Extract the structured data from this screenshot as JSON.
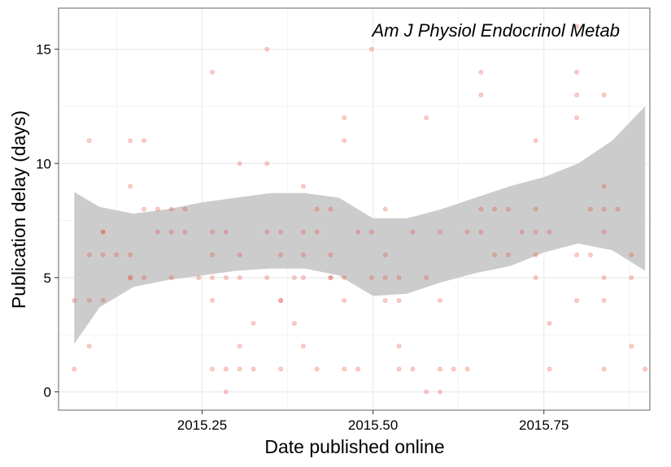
{
  "chart_data": {
    "type": "scatter",
    "title": "Am J Physiol Endocrinol Metab",
    "xlabel": "Date published online",
    "ylabel": "Publication delay (days)",
    "xlim": [
      2015.04,
      2015.905
    ],
    "ylim": [
      -0.8,
      16.8
    ],
    "x_ticks": [
      2015.25,
      2015.5,
      2015.75
    ],
    "x_tick_labels": [
      "2015.25",
      "2015.50",
      "2015.75"
    ],
    "y_ticks": [
      0,
      5,
      10,
      15
    ],
    "y_tick_labels": [
      "0",
      "5",
      "10",
      "15"
    ],
    "x_minor_ticks": [
      2015.125,
      2015.375,
      2015.625,
      2015.875
    ],
    "y_minor_ticks": [
      2.5,
      7.5,
      12.5
    ],
    "grid": true,
    "legend": "none",
    "colors": {
      "points": "#e8473a",
      "ribbon": "#cccccc",
      "grid": "#ebebeb",
      "panel_border": "#7f7f7f"
    },
    "points": [
      {
        "x": 2015.063,
        "y": 4
      },
      {
        "x": 2015.063,
        "y": 1
      },
      {
        "x": 2015.085,
        "y": 11
      },
      {
        "x": 2015.085,
        "y": 6
      },
      {
        "x": 2015.085,
        "y": 4
      },
      {
        "x": 2015.085,
        "y": 2
      },
      {
        "x": 2015.105,
        "y": 7
      },
      {
        "x": 2015.105,
        "y": 7
      },
      {
        "x": 2015.105,
        "y": 6
      },
      {
        "x": 2015.105,
        "y": 4
      },
      {
        "x": 2015.125,
        "y": 6
      },
      {
        "x": 2015.145,
        "y": 11
      },
      {
        "x": 2015.145,
        "y": 9
      },
      {
        "x": 2015.145,
        "y": 6
      },
      {
        "x": 2015.145,
        "y": 5
      },
      {
        "x": 2015.145,
        "y": 5
      },
      {
        "x": 2015.165,
        "y": 11
      },
      {
        "x": 2015.165,
        "y": 8
      },
      {
        "x": 2015.165,
        "y": 5
      },
      {
        "x": 2015.185,
        "y": 8
      },
      {
        "x": 2015.185,
        "y": 7
      },
      {
        "x": 2015.205,
        "y": 8
      },
      {
        "x": 2015.205,
        "y": 7
      },
      {
        "x": 2015.205,
        "y": 5
      },
      {
        "x": 2015.225,
        "y": 8
      },
      {
        "x": 2015.225,
        "y": 7
      },
      {
        "x": 2015.245,
        "y": 5
      },
      {
        "x": 2015.265,
        "y": 14
      },
      {
        "x": 2015.265,
        "y": 7
      },
      {
        "x": 2015.265,
        "y": 6
      },
      {
        "x": 2015.265,
        "y": 5
      },
      {
        "x": 2015.265,
        "y": 4
      },
      {
        "x": 2015.265,
        "y": 1
      },
      {
        "x": 2015.285,
        "y": 7
      },
      {
        "x": 2015.285,
        "y": 5
      },
      {
        "x": 2015.285,
        "y": 1
      },
      {
        "x": 2015.285,
        "y": 0
      },
      {
        "x": 2015.305,
        "y": 10
      },
      {
        "x": 2015.305,
        "y": 6
      },
      {
        "x": 2015.305,
        "y": 5
      },
      {
        "x": 2015.305,
        "y": 2
      },
      {
        "x": 2015.305,
        "y": 1
      },
      {
        "x": 2015.325,
        "y": 3
      },
      {
        "x": 2015.325,
        "y": 1
      },
      {
        "x": 2015.345,
        "y": 15
      },
      {
        "x": 2015.345,
        "y": 10
      },
      {
        "x": 2015.345,
        "y": 7
      },
      {
        "x": 2015.345,
        "y": 5
      },
      {
        "x": 2015.365,
        "y": 7
      },
      {
        "x": 2015.365,
        "y": 6
      },
      {
        "x": 2015.365,
        "y": 4
      },
      {
        "x": 2015.365,
        "y": 4
      },
      {
        "x": 2015.365,
        "y": 1
      },
      {
        "x": 2015.385,
        "y": 5
      },
      {
        "x": 2015.385,
        "y": 3
      },
      {
        "x": 2015.398,
        "y": 9
      },
      {
        "x": 2015.398,
        "y": 7
      },
      {
        "x": 2015.398,
        "y": 6
      },
      {
        "x": 2015.398,
        "y": 5
      },
      {
        "x": 2015.398,
        "y": 2
      },
      {
        "x": 2015.418,
        "y": 8
      },
      {
        "x": 2015.418,
        "y": 7
      },
      {
        "x": 2015.418,
        "y": 1
      },
      {
        "x": 2015.438,
        "y": 8
      },
      {
        "x": 2015.438,
        "y": 6
      },
      {
        "x": 2015.438,
        "y": 5
      },
      {
        "x": 2015.438,
        "y": 5
      },
      {
        "x": 2015.458,
        "y": 12
      },
      {
        "x": 2015.458,
        "y": 11
      },
      {
        "x": 2015.458,
        "y": 5
      },
      {
        "x": 2015.458,
        "y": 4
      },
      {
        "x": 2015.458,
        "y": 1
      },
      {
        "x": 2015.478,
        "y": 7
      },
      {
        "x": 2015.478,
        "y": 1
      },
      {
        "x": 2015.498,
        "y": 15
      },
      {
        "x": 2015.498,
        "y": 7
      },
      {
        "x": 2015.498,
        "y": 5
      },
      {
        "x": 2015.518,
        "y": 8
      },
      {
        "x": 2015.518,
        "y": 6
      },
      {
        "x": 2015.518,
        "y": 5
      },
      {
        "x": 2015.518,
        "y": 4
      },
      {
        "x": 2015.538,
        "y": 5
      },
      {
        "x": 2015.538,
        "y": 4
      },
      {
        "x": 2015.538,
        "y": 2
      },
      {
        "x": 2015.538,
        "y": 1
      },
      {
        "x": 2015.558,
        "y": 7
      },
      {
        "x": 2015.558,
        "y": 1
      },
      {
        "x": 2015.578,
        "y": 12
      },
      {
        "x": 2015.578,
        "y": 5
      },
      {
        "x": 2015.578,
        "y": 0
      },
      {
        "x": 2015.598,
        "y": 7
      },
      {
        "x": 2015.598,
        "y": 4
      },
      {
        "x": 2015.598,
        "y": 1
      },
      {
        "x": 2015.598,
        "y": 0
      },
      {
        "x": 2015.618,
        "y": 1
      },
      {
        "x": 2015.638,
        "y": 7
      },
      {
        "x": 2015.638,
        "y": 1
      },
      {
        "x": 2015.658,
        "y": 14
      },
      {
        "x": 2015.658,
        "y": 13
      },
      {
        "x": 2015.658,
        "y": 8
      },
      {
        "x": 2015.658,
        "y": 7
      },
      {
        "x": 2015.678,
        "y": 8
      },
      {
        "x": 2015.678,
        "y": 6
      },
      {
        "x": 2015.698,
        "y": 8
      },
      {
        "x": 2015.698,
        "y": 6
      },
      {
        "x": 2015.718,
        "y": 7
      },
      {
        "x": 2015.738,
        "y": 11
      },
      {
        "x": 2015.738,
        "y": 8
      },
      {
        "x": 2015.738,
        "y": 7
      },
      {
        "x": 2015.738,
        "y": 6
      },
      {
        "x": 2015.738,
        "y": 5
      },
      {
        "x": 2015.758,
        "y": 7
      },
      {
        "x": 2015.758,
        "y": 3
      },
      {
        "x": 2015.758,
        "y": 1
      },
      {
        "x": 2015.798,
        "y": 16
      },
      {
        "x": 2015.798,
        "y": 14
      },
      {
        "x": 2015.798,
        "y": 13
      },
      {
        "x": 2015.798,
        "y": 12
      },
      {
        "x": 2015.798,
        "y": 6
      },
      {
        "x": 2015.798,
        "y": 4
      },
      {
        "x": 2015.818,
        "y": 8
      },
      {
        "x": 2015.818,
        "y": 6
      },
      {
        "x": 2015.838,
        "y": 13
      },
      {
        "x": 2015.838,
        "y": 9
      },
      {
        "x": 2015.838,
        "y": 8
      },
      {
        "x": 2015.838,
        "y": 7
      },
      {
        "x": 2015.838,
        "y": 5
      },
      {
        "x": 2015.838,
        "y": 4
      },
      {
        "x": 2015.838,
        "y": 1
      },
      {
        "x": 2015.858,
        "y": 8
      },
      {
        "x": 2015.878,
        "y": 6
      },
      {
        "x": 2015.878,
        "y": 5
      },
      {
        "x": 2015.878,
        "y": 2
      },
      {
        "x": 2015.898,
        "y": 1
      }
    ],
    "smooth": {
      "x": [
        2015.063,
        2015.1,
        2015.15,
        2015.2,
        2015.25,
        2015.3,
        2015.35,
        2015.4,
        2015.45,
        2015.5,
        2015.55,
        2015.6,
        2015.65,
        2015.7,
        2015.75,
        2015.8,
        2015.85,
        2015.898
      ],
      "lower": [
        2.1,
        3.7,
        4.6,
        4.9,
        5.1,
        5.3,
        5.4,
        5.4,
        5.1,
        4.2,
        4.3,
        4.8,
        5.2,
        5.5,
        6.1,
        6.5,
        6.2,
        5.3
      ],
      "upper": [
        8.75,
        8.1,
        7.8,
        8.0,
        8.3,
        8.5,
        8.7,
        8.7,
        8.5,
        7.6,
        7.6,
        8.0,
        8.5,
        9.0,
        9.4,
        10.0,
        11.0,
        12.5
      ]
    }
  }
}
